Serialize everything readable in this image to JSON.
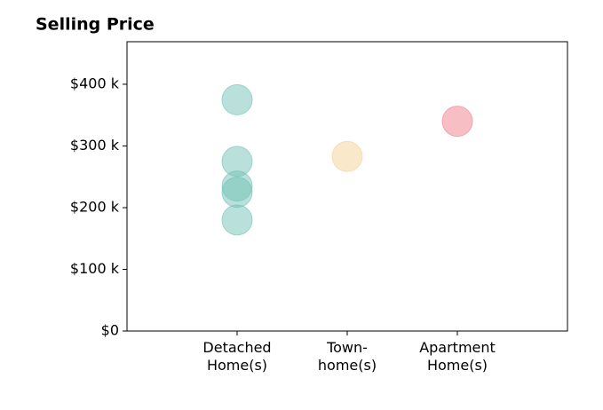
{
  "chart_data": {
    "type": "strip",
    "title": "Selling Price",
    "categories": [
      "Detached\nHome(s)",
      "Town-\nhome(s)",
      "Apartment\nHome(s)"
    ],
    "values": [
      [
        375000,
        275000,
        235000,
        225000,
        180000
      ],
      [
        283000
      ],
      [
        340000
      ]
    ],
    "colors": [
      "#73c2b5",
      "#f3d293",
      "#ef7f88"
    ],
    "xlim": [
      -1,
      3
    ],
    "ylim": [
      0,
      469000
    ],
    "yticks": [
      {
        "value": 0,
        "label": "$0"
      },
      {
        "value": 100000,
        "label": "$100 k"
      },
      {
        "value": 200000,
        "label": "$200 k"
      },
      {
        "value": 300000,
        "label": "$300 k"
      },
      {
        "value": 400000,
        "label": "$400 k"
      }
    ]
  }
}
